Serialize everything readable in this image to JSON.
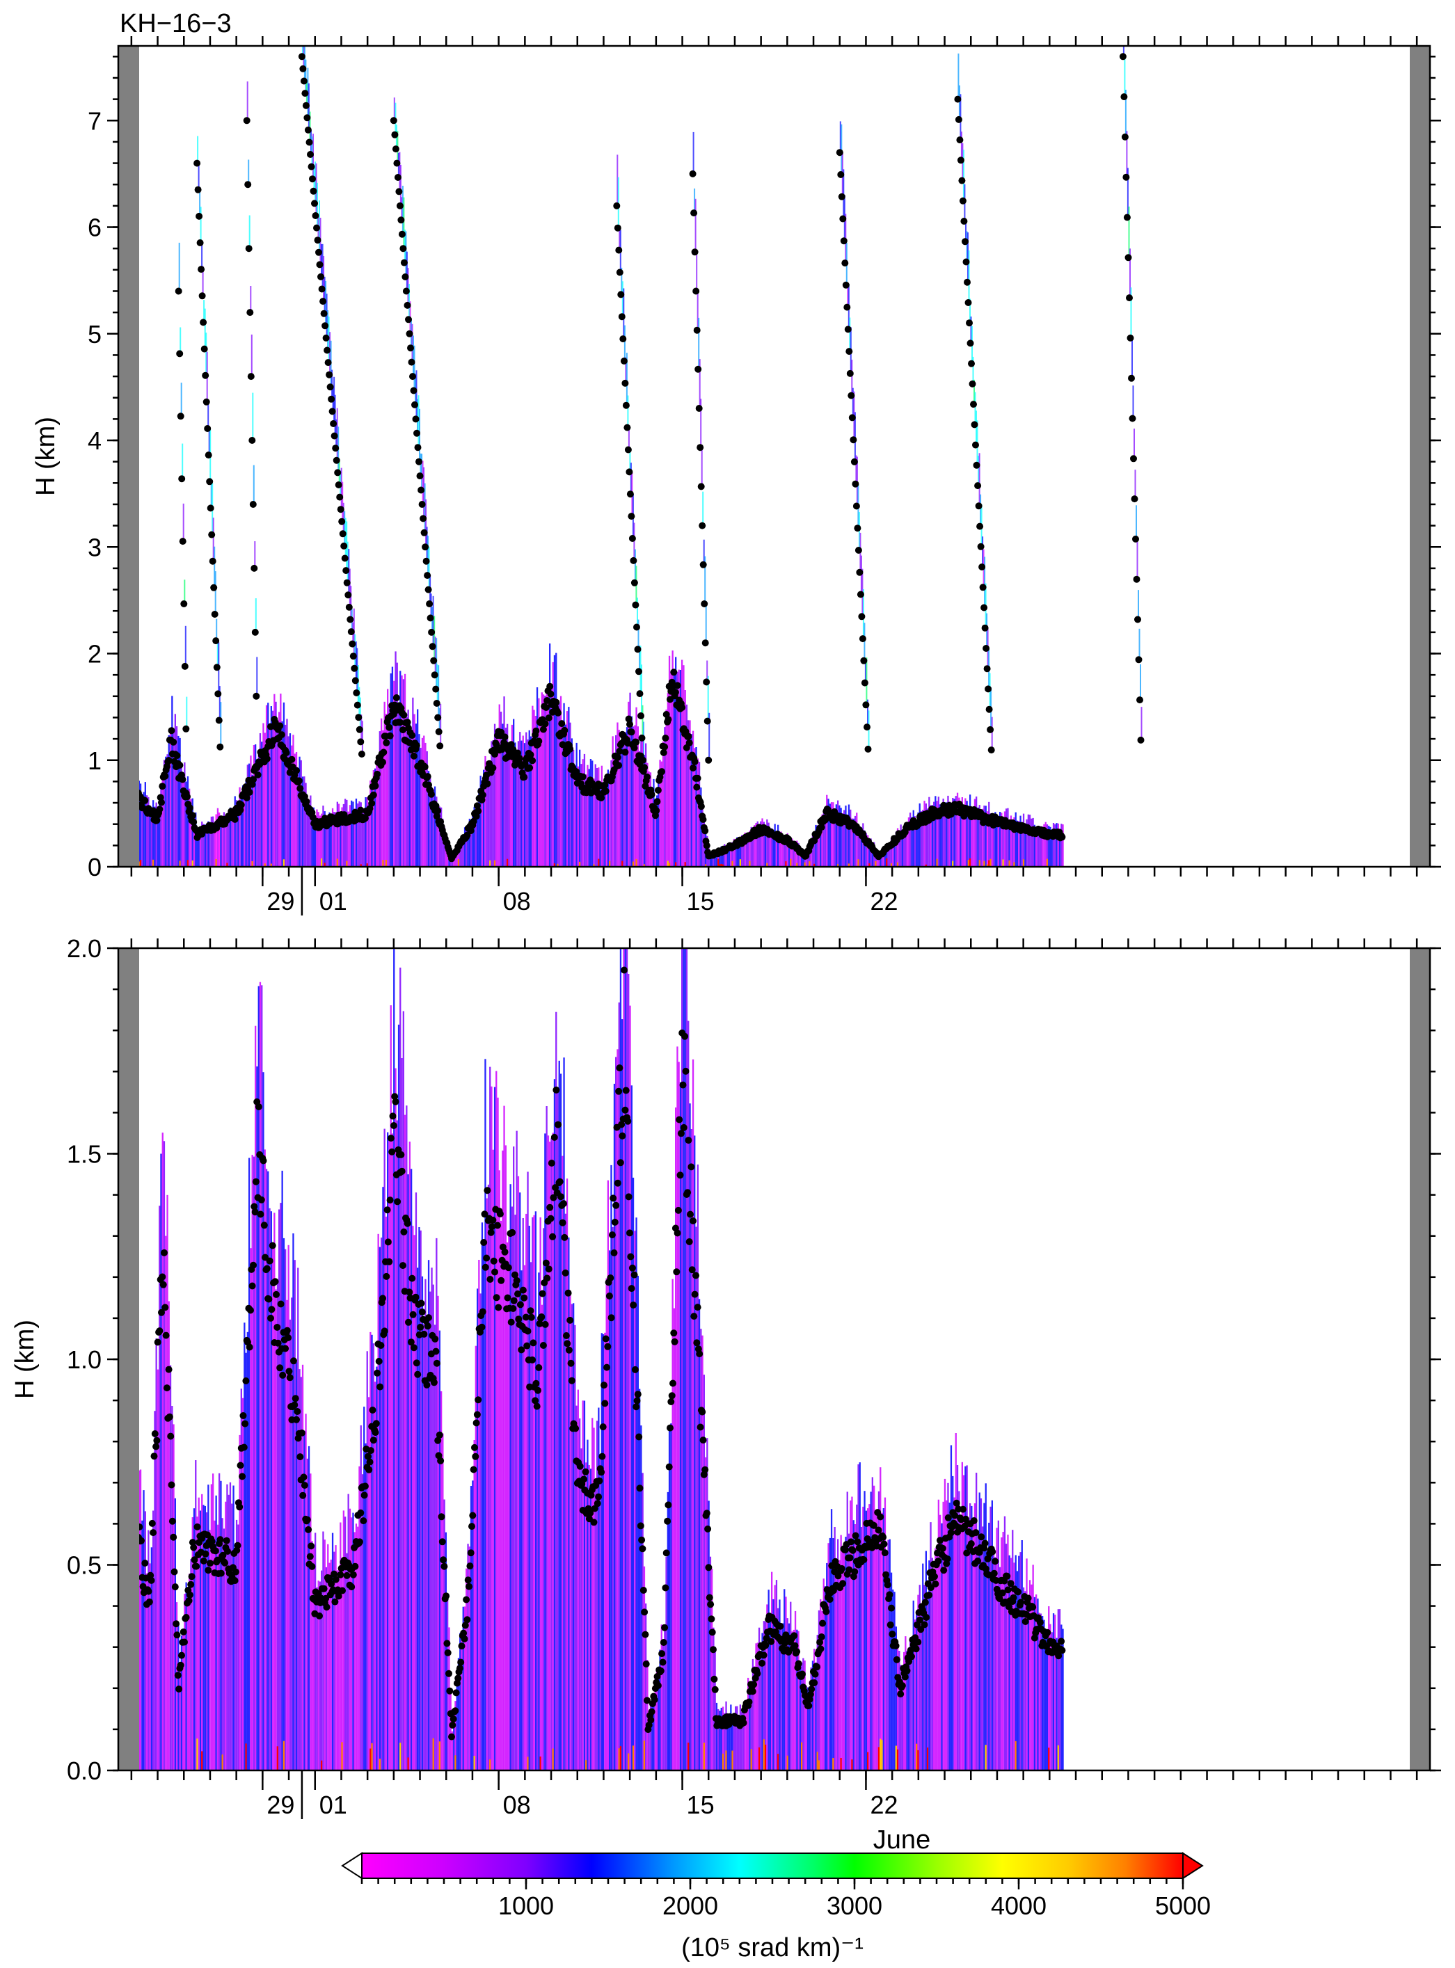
{
  "title": "KH−16−3",
  "chart_data": [
    {
      "type": "heatmap",
      "panel": "top",
      "ylabel": "H (km)",
      "xlabel": "",
      "ylim": [
        0,
        7.7
      ],
      "yticks": [
        0,
        1,
        2,
        3,
        4,
        5,
        6,
        7
      ],
      "ytick_labels": [
        "0",
        "1",
        "2",
        "3",
        "4",
        "5",
        "6",
        "7"
      ],
      "xlim_days": [
        -7.5,
        42.5
      ],
      "x_major_ticks": [
        -2,
        0,
        7,
        14,
        21
      ],
      "x_tick_labels": [
        "29",
        "01",
        "08",
        "15",
        "22"
      ],
      "grid": false,
      "background_noise_band_km": [
        1.1,
        5.1
      ],
      "missing_data_intervals_days": [
        [
          -7.5,
          -6.8
        ],
        [
          41.5,
          42.5
        ]
      ],
      "markers": "cloud base / layer height (black dots)",
      "features": [
        {
          "day_start": -5.2,
          "day_end": -4.9,
          "H_peak": 5.4
        },
        {
          "day_start": -4.5,
          "day_end": -3.6,
          "H_peak": 6.6
        },
        {
          "day_start": -2.6,
          "day_end": -2.2,
          "H_peak": 7.0
        },
        {
          "day_start": -0.5,
          "day_end": 1.8,
          "H_peak": 7.6
        },
        {
          "day_start": 3.0,
          "day_end": 4.8,
          "H_peak": 7.0
        },
        {
          "day_start": 11.5,
          "day_end": 12.5,
          "H_peak": 6.2
        },
        {
          "day_start": 14.4,
          "day_end": 15.0,
          "H_peak": 6.5
        },
        {
          "day_start": 20.0,
          "day_end": 21.1,
          "H_peak": 6.7
        },
        {
          "day_start": 24.5,
          "day_end": 25.8,
          "H_peak": 7.2
        },
        {
          "day_start": 30.8,
          "day_end": 31.5,
          "H_peak": 7.6
        }
      ],
      "boundary_layer_height_km": [
        {
          "day": -7,
          "H": 0.7
        },
        {
          "day": -6,
          "H": 0.45
        },
        {
          "day": -5.5,
          "H": 1.2
        },
        {
          "day": -4.5,
          "H": 0.3
        },
        {
          "day": -3,
          "H": 0.5
        },
        {
          "day": -1.5,
          "H": 1.3
        },
        {
          "day": 0,
          "H": 0.4
        },
        {
          "day": 2,
          "H": 0.5
        },
        {
          "day": 3,
          "H": 1.5
        },
        {
          "day": 4,
          "H": 1.0
        },
        {
          "day": 5.2,
          "H": 0.08
        },
        {
          "day": 6,
          "H": 0.4
        },
        {
          "day": 7,
          "H": 1.2
        },
        {
          "day": 8,
          "H": 0.9
        },
        {
          "day": 9,
          "H": 1.6
        },
        {
          "day": 10,
          "H": 0.8
        },
        {
          "day": 11,
          "H": 0.7
        },
        {
          "day": 12,
          "H": 1.3
        },
        {
          "day": 13,
          "H": 0.5
        },
        {
          "day": 13.6,
          "H": 1.8
        },
        {
          "day": 14.5,
          "H": 0.9
        },
        {
          "day": 15,
          "H": 0.1
        },
        {
          "day": 16,
          "H": 0.2
        },
        {
          "day": 17,
          "H": 0.35
        },
        {
          "day": 18,
          "H": 0.25
        },
        {
          "day": 18.7,
          "H": 0.1
        },
        {
          "day": 19.5,
          "H": 0.5
        },
        {
          "day": 20.5,
          "H": 0.4
        },
        {
          "day": 21.5,
          "H": 0.1
        },
        {
          "day": 22.5,
          "H": 0.35
        },
        {
          "day": 23.5,
          "H": 0.5
        },
        {
          "day": 24.5,
          "H": 0.55
        },
        {
          "day": 25.5,
          "H": 0.45
        },
        {
          "day": 26.5,
          "H": 0.4
        },
        {
          "day": 28,
          "H": 0.3
        }
      ]
    },
    {
      "type": "heatmap",
      "panel": "bottom",
      "ylabel": "H (km)",
      "xlabel": "June",
      "ylim": [
        0,
        2.0
      ],
      "yticks": [
        0.0,
        0.5,
        1.0,
        1.5,
        2.0
      ],
      "ytick_labels": [
        "0.0",
        "0.5",
        "1.0",
        "1.5",
        "2.0"
      ],
      "xlim_days": [
        -7.5,
        42.5
      ],
      "x_major_ticks": [
        -2,
        0,
        7,
        14,
        21
      ],
      "x_tick_labels": [
        "29",
        "01",
        "08",
        "15",
        "22"
      ],
      "grid": false,
      "background_noise_band_km": [
        1.1
      ],
      "missing_data_intervals_days": [
        [
          -7.5,
          -6.8
        ],
        [
          41.5,
          42.5
        ]
      ],
      "markers": "cloud base / layer height (black dots)",
      "boundary_layer_height_km": [
        {
          "day": -7,
          "H": 0.65
        },
        {
          "day": -6.3,
          "H": 0.4
        },
        {
          "day": -5.8,
          "H": 1.3
        },
        {
          "day": -5.2,
          "H": 0.2
        },
        {
          "day": -4.6,
          "H": 0.55
        },
        {
          "day": -3,
          "H": 0.5
        },
        {
          "day": -2.2,
          "H": 1.5
        },
        {
          "day": -1.5,
          "H": 1.1
        },
        {
          "day": -0.7,
          "H": 0.9
        },
        {
          "day": 0,
          "H": 0.4
        },
        {
          "day": 1.5,
          "H": 0.5
        },
        {
          "day": 2.5,
          "H": 1.0
        },
        {
          "day": 3,
          "H": 1.55
        },
        {
          "day": 3.8,
          "H": 1.05
        },
        {
          "day": 4.6,
          "H": 1.0
        },
        {
          "day": 5.2,
          "H": 0.08
        },
        {
          "day": 5.8,
          "H": 0.4
        },
        {
          "day": 6.5,
          "H": 1.3
        },
        {
          "day": 7.5,
          "H": 1.2
        },
        {
          "day": 8.5,
          "H": 0.95
        },
        {
          "day": 9.2,
          "H": 1.55
        },
        {
          "day": 10,
          "H": 0.7
        },
        {
          "day": 10.8,
          "H": 0.65
        },
        {
          "day": 11.8,
          "H": 1.8
        },
        {
          "day": 12.7,
          "H": 0.1
        },
        {
          "day": 13.3,
          "H": 0.3
        },
        {
          "day": 14,
          "H": 1.75
        },
        {
          "day": 14.7,
          "H": 0.9
        },
        {
          "day": 15.3,
          "H": 0.12
        },
        {
          "day": 16.3,
          "H": 0.12
        },
        {
          "day": 17.3,
          "H": 0.35
        },
        {
          "day": 18.3,
          "H": 0.3
        },
        {
          "day": 18.8,
          "H": 0.15
        },
        {
          "day": 19.6,
          "H": 0.45
        },
        {
          "day": 21.5,
          "H": 0.6
        },
        {
          "day": 22.3,
          "H": 0.2
        },
        {
          "day": 23.5,
          "H": 0.45
        },
        {
          "day": 24.3,
          "H": 0.6
        },
        {
          "day": 25.2,
          "H": 0.55
        },
        {
          "day": 26.2,
          "H": 0.45
        },
        {
          "day": 27,
          "H": 0.4
        },
        {
          "day": 28,
          "H": 0.3
        }
      ]
    }
  ],
  "colorbar": {
    "label": "(10⁵ srad km)⁻¹",
    "vmin": 0,
    "vmax": 5000,
    "extend": "both",
    "ticks": [
      1000,
      2000,
      3000,
      4000,
      5000
    ],
    "tick_labels": [
      "1000",
      "2000",
      "3000",
      "4000",
      "5000"
    ],
    "colors": [
      "#ff00ff",
      "#cc00ff",
      "#7f00ff",
      "#0000ff",
      "#0099ff",
      "#00ffff",
      "#00ff66",
      "#00ff00",
      "#99ff00",
      "#ffff00",
      "#ffcc00",
      "#ff8000",
      "#ff0000"
    ],
    "marker_color": "#000000",
    "missing_color": "#808080"
  },
  "month_label": "June"
}
